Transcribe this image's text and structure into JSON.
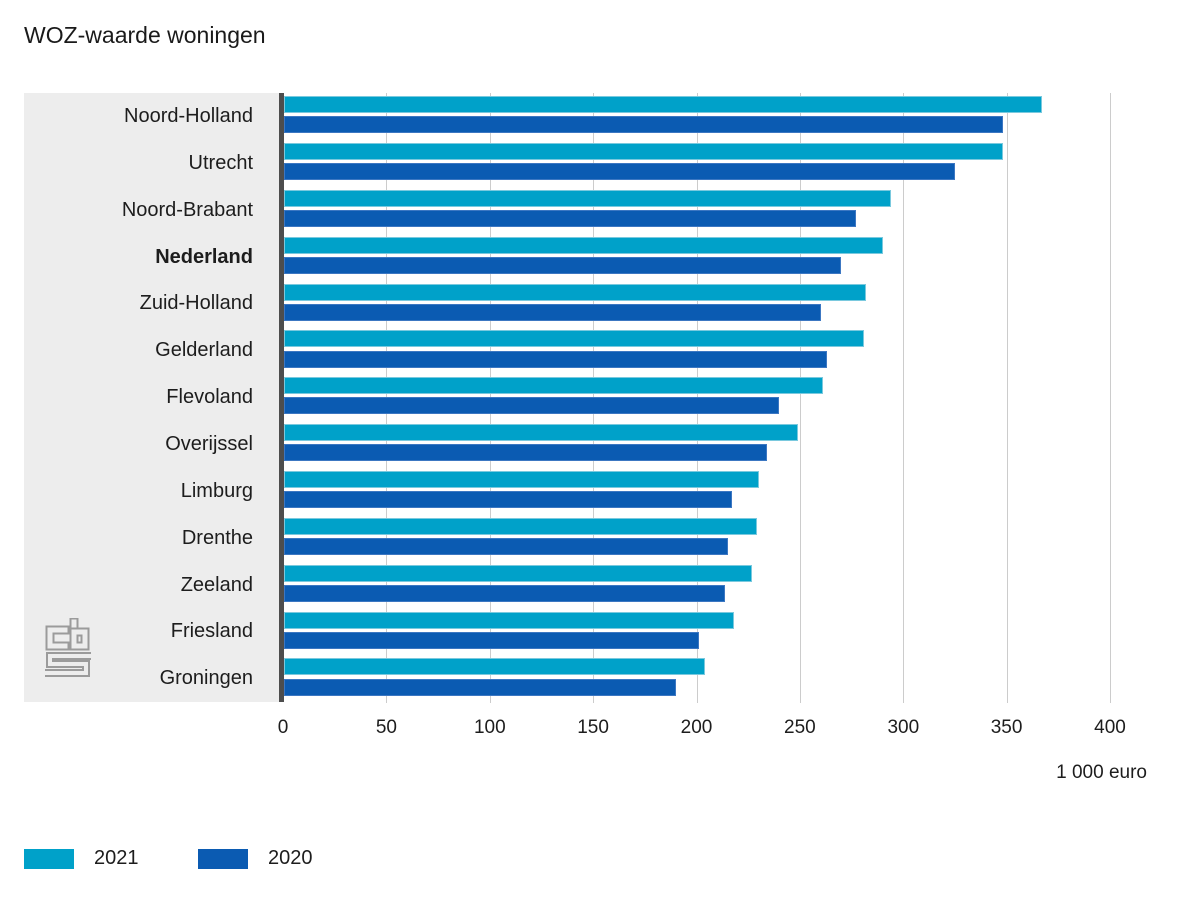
{
  "title": "WOZ-waarde woningen",
  "chart_data": {
    "type": "bar",
    "orientation": "horizontal",
    "title": "WOZ-waarde woningen",
    "xlabel": "1 000 euro",
    "xlim": [
      0,
      400
    ],
    "xticks": [
      0,
      50,
      100,
      150,
      200,
      250,
      300,
      350,
      400
    ],
    "grid": true,
    "legend_position": "bottom-left",
    "categories": [
      "Noord-Holland",
      "Utrecht",
      "Noord-Brabant",
      "Nederland",
      "Zuid-Holland",
      "Gelderland",
      "Flevoland",
      "Overijssel",
      "Limburg",
      "Drenthe",
      "Zeeland",
      "Friesland",
      "Groningen"
    ],
    "bold_category": "Nederland",
    "series": [
      {
        "name": "2021",
        "color": "#00a1c9",
        "border_color": "#7ac9de",
        "values": [
          367,
          348,
          294,
          290,
          282,
          281,
          261,
          249,
          230,
          229,
          227,
          218,
          204
        ]
      },
      {
        "name": "2020",
        "color": "#0b5bb2",
        "border_color": "#3c77c2",
        "values": [
          348,
          325,
          277,
          270,
          260,
          263,
          240,
          234,
          217,
          215,
          214,
          201,
          190
        ]
      }
    ]
  },
  "colors": {
    "background": "#ffffff",
    "panel": "#ededed",
    "gridline": "#cccccc",
    "axis_line": "#4d4d4d",
    "text": "#1a1a1a",
    "logo": "#9b9b9b"
  },
  "logo": {
    "name": "cbs-logo"
  }
}
